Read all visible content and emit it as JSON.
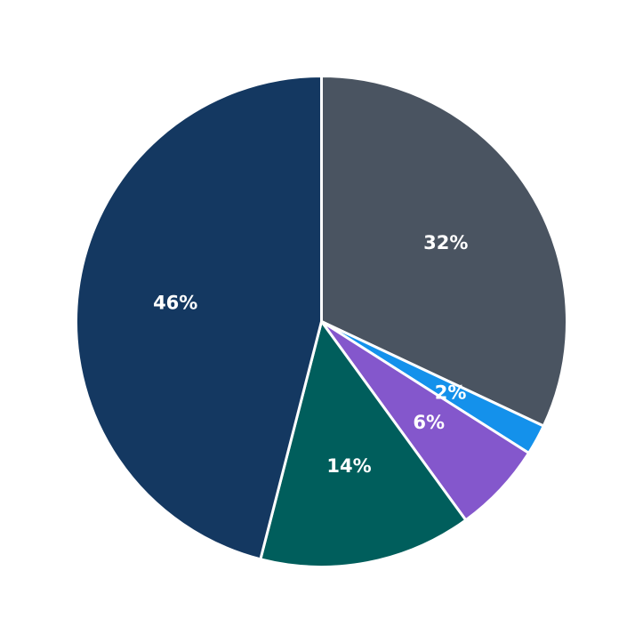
{
  "chart_data": {
    "type": "pie",
    "start_angle": "12 o'clock",
    "direction": "clockwise",
    "slices": [
      {
        "label": "32%",
        "value": 32,
        "color": "#4a5461"
      },
      {
        "label": "2%",
        "value": 2,
        "color": "#1491eb"
      },
      {
        "label": "6%",
        "value": 6,
        "color": "#8457cc"
      },
      {
        "label": "14%",
        "value": 14,
        "color": "#005e5c"
      },
      {
        "label": "46%",
        "value": 46,
        "color": "#143861"
      }
    ]
  }
}
